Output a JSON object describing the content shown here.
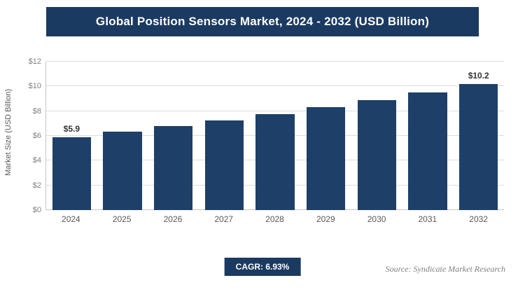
{
  "header": {
    "title": "Global Position Sensors Market, 2024 - 2032 (USD Billion)"
  },
  "chart_data": {
    "type": "bar",
    "title": "Global Position Sensors Market, 2024 - 2032 (USD Billion)",
    "categories": [
      "2024",
      "2025",
      "2026",
      "2027",
      "2028",
      "2029",
      "2030",
      "2031",
      "2032"
    ],
    "values": [
      5.9,
      6.35,
      6.8,
      7.25,
      7.75,
      8.3,
      8.9,
      9.5,
      10.2
    ],
    "value_labels": [
      {
        "index": 0,
        "text": "$5.9"
      },
      {
        "index": 8,
        "text": "$10.2"
      }
    ],
    "xlabel": "",
    "ylabel": "Market Size (USD Billion)",
    "ylim": [
      0,
      12
    ],
    "ytick_step": 2,
    "ytick_labels": [
      "$0",
      "$2",
      "$4",
      "$6",
      "$8",
      "$10",
      "$12"
    ],
    "grid": true,
    "legend": "none",
    "colors": {
      "bar": "#1e3f68",
      "banner": "#1b3a61",
      "gridline": "#dcdcdc"
    }
  },
  "footer": {
    "cagr_label": "CAGR: 6.93%",
    "source": "Source: Syndicate Market Research"
  }
}
